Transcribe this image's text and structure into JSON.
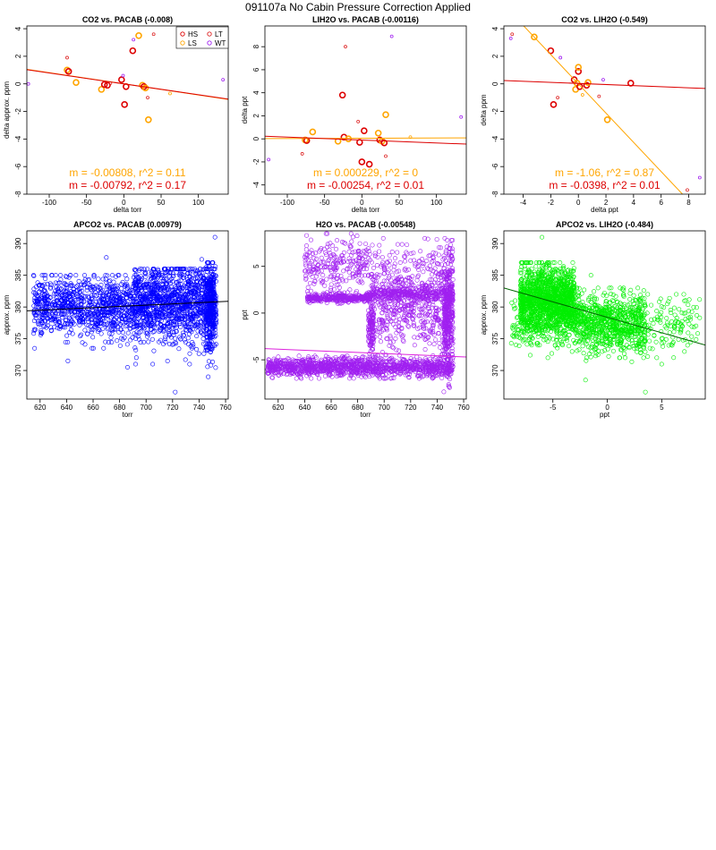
{
  "figure_title": "091107a   No Cabin Pressure Correction Applied",
  "colors": {
    "HS": "#dd0000",
    "LS": "#ffa500",
    "LT": "#dd2222",
    "WT": "#a020f0",
    "fit_red": "#dd0000",
    "fit_orange": "#ffa500"
  },
  "chart_data": [
    {
      "type": "scatter",
      "title": "CO2 vs. PACAB (-0.008)",
      "xlabel": "delta torr",
      "ylabel": "delta approx. ppm",
      "xlim": [
        -130,
        140
      ],
      "ylim": [
        -8,
        4.2
      ],
      "xticks": [
        -100,
        -50,
        0,
        50,
        100
      ],
      "yticks": [
        -8,
        -6,
        -4,
        -2,
        0,
        2,
        4
      ],
      "legend": {
        "position": "top-right",
        "entries": [
          {
            "label": "HS",
            "color": "#dd0000"
          },
          {
            "label": "LT",
            "color": "#dd2222"
          },
          {
            "label": "LS",
            "color": "#ffa500"
          },
          {
            "label": "WT",
            "color": "#a020f0"
          }
        ]
      },
      "points": [
        {
          "x": -128,
          "y": 0.0,
          "c": "#a020f0",
          "r": 1.5
        },
        {
          "x": -76,
          "y": 1.9,
          "c": "#dd2222",
          "r": 1.5
        },
        {
          "x": -76,
          "y": 1.0,
          "c": "#ffa500",
          "r": 3
        },
        {
          "x": -74,
          "y": 0.9,
          "c": "#dd0000",
          "r": 3
        },
        {
          "x": -64,
          "y": 0.1,
          "c": "#ffa500",
          "r": 3
        },
        {
          "x": -30,
          "y": -0.4,
          "c": "#ffa500",
          "r": 3
        },
        {
          "x": -26,
          "y": -0.05,
          "c": "#dd0000",
          "r": 3
        },
        {
          "x": -22,
          "y": -0.1,
          "c": "#dd0000",
          "r": 3
        },
        {
          "x": -18,
          "y": 0.05,
          "c": "#dd2222",
          "r": 1.5
        },
        {
          "x": -3,
          "y": 0.3,
          "c": "#dd0000",
          "r": 3
        },
        {
          "x": -1,
          "y": 0.6,
          "c": "#a020f0",
          "r": 1.5
        },
        {
          "x": 1,
          "y": -1.5,
          "c": "#dd0000",
          "r": 3
        },
        {
          "x": 3,
          "y": -0.2,
          "c": "#dd0000",
          "r": 3
        },
        {
          "x": 12,
          "y": 2.4,
          "c": "#dd0000",
          "r": 3
        },
        {
          "x": 13,
          "y": 3.2,
          "c": "#a020f0",
          "r": 1.5
        },
        {
          "x": 20,
          "y": 3.5,
          "c": "#ffa500",
          "r": 3
        },
        {
          "x": 25,
          "y": -0.1,
          "c": "#ffa500",
          "r": 3
        },
        {
          "x": 27,
          "y": -0.2,
          "c": "#dd0000",
          "r": 3
        },
        {
          "x": 29,
          "y": -0.3,
          "c": "#ffa500",
          "r": 3
        },
        {
          "x": 32,
          "y": -1.0,
          "c": "#dd2222",
          "r": 1.5
        },
        {
          "x": 33,
          "y": -2.6,
          "c": "#ffa500",
          "r": 3
        },
        {
          "x": 40,
          "y": 3.6,
          "c": "#dd2222",
          "r": 1.5
        },
        {
          "x": 62,
          "y": -0.7,
          "c": "#ffa500",
          "r": 1.5
        },
        {
          "x": 133,
          "y": 0.3,
          "c": "#a020f0",
          "r": 1.5
        }
      ],
      "fits": [
        {
          "color": "#ffa500",
          "slope": -0.00808,
          "intercept": 0.0
        },
        {
          "color": "#dd0000",
          "slope": -0.00792,
          "intercept": 0.0
        }
      ],
      "stats": [
        {
          "text": "m = -0.00808, r^2 = 0.11",
          "color": "#ffa500"
        },
        {
          "text": "m = -0.00792, r^2 = 0.17",
          "color": "#dd0000"
        }
      ]
    },
    {
      "type": "scatter",
      "title": "LIH2O vs. PACAB (-0.00116)",
      "xlabel": "delta torr",
      "ylabel": "delta ppt",
      "xlim": [
        -130,
        140
      ],
      "ylim": [
        -4.8,
        9.8
      ],
      "xticks": [
        -100,
        -50,
        0,
        50,
        100
      ],
      "yticks": [
        -4,
        -2,
        0,
        2,
        4,
        6,
        8
      ],
      "points": [
        {
          "x": -125,
          "y": -1.8,
          "c": "#a020f0",
          "r": 1.5
        },
        {
          "x": -80,
          "y": -1.3,
          "c": "#dd2222",
          "r": 1.5
        },
        {
          "x": -76,
          "y": -0.1,
          "c": "#ffa500",
          "r": 3
        },
        {
          "x": -74,
          "y": -0.15,
          "c": "#dd0000",
          "r": 3
        },
        {
          "x": -66,
          "y": 0.6,
          "c": "#ffa500",
          "r": 3
        },
        {
          "x": -32,
          "y": -0.2,
          "c": "#ffa500",
          "r": 3
        },
        {
          "x": -26,
          "y": 3.8,
          "c": "#dd0000",
          "r": 3
        },
        {
          "x": -24,
          "y": 0.15,
          "c": "#dd0000",
          "r": 3
        },
        {
          "x": -22,
          "y": 8.0,
          "c": "#dd2222",
          "r": 1.5
        },
        {
          "x": -18,
          "y": 0.0,
          "c": "#ffa500",
          "r": 3
        },
        {
          "x": -5,
          "y": 1.5,
          "c": "#dd2222",
          "r": 1.5
        },
        {
          "x": -3,
          "y": -0.3,
          "c": "#dd0000",
          "r": 3
        },
        {
          "x": 0,
          "y": -2.0,
          "c": "#dd0000",
          "r": 3
        },
        {
          "x": 3,
          "y": 0.7,
          "c": "#dd0000",
          "r": 3
        },
        {
          "x": 10,
          "y": -2.2,
          "c": "#dd0000",
          "r": 3
        },
        {
          "x": 22,
          "y": 0.5,
          "c": "#ffa500",
          "r": 3
        },
        {
          "x": 24,
          "y": -0.1,
          "c": "#dd0000",
          "r": 3
        },
        {
          "x": 27,
          "y": -0.2,
          "c": "#ffa500",
          "r": 3
        },
        {
          "x": 30,
          "y": -0.35,
          "c": "#dd0000",
          "r": 3
        },
        {
          "x": 32,
          "y": -1.5,
          "c": "#dd2222",
          "r": 1.5
        },
        {
          "x": 32,
          "y": 2.1,
          "c": "#ffa500",
          "r": 3
        },
        {
          "x": 40,
          "y": 8.9,
          "c": "#a020f0",
          "r": 1.5
        },
        {
          "x": 65,
          "y": 0.15,
          "c": "#ffa500",
          "r": 1.5
        },
        {
          "x": 133,
          "y": 1.9,
          "c": "#a020f0",
          "r": 1.5
        }
      ],
      "fits": [
        {
          "color": "#ffa500",
          "slope": 0.000229,
          "intercept": 0.05
        },
        {
          "color": "#dd0000",
          "slope": -0.00254,
          "intercept": -0.1
        }
      ],
      "stats": [
        {
          "text": "m = 0.000229, r^2 = 0",
          "color": "#ffa500"
        },
        {
          "text": "m = -0.00254, r^2 = 0.01",
          "color": "#dd0000"
        }
      ]
    },
    {
      "type": "scatter",
      "title": "CO2 vs. LIH2O (-0.549)",
      "xlabel": "delta ppt",
      "ylabel": "delta ppm",
      "xlim": [
        -5.4,
        9.2
      ],
      "ylim": [
        -8,
        4.2
      ],
      "xticks": [
        -4,
        -2,
        0,
        2,
        4,
        6,
        8
      ],
      "yticks": [
        -8,
        -6,
        -4,
        -2,
        0,
        2,
        4
      ],
      "points": [
        {
          "x": -4.8,
          "y": 3.6,
          "c": "#dd2222",
          "r": 1.5
        },
        {
          "x": -4.9,
          "y": 3.3,
          "c": "#a020f0",
          "r": 1.5
        },
        {
          "x": -3.2,
          "y": 3.4,
          "c": "#ffa500",
          "r": 3
        },
        {
          "x": -2.0,
          "y": 2.4,
          "c": "#dd0000",
          "r": 3
        },
        {
          "x": -1.8,
          "y": -1.5,
          "c": "#dd0000",
          "r": 3
        },
        {
          "x": -1.5,
          "y": -1.0,
          "c": "#dd2222",
          "r": 1.5
        },
        {
          "x": -1.3,
          "y": 1.9,
          "c": "#a020f0",
          "r": 1.5
        },
        {
          "x": -0.3,
          "y": 0.3,
          "c": "#dd0000",
          "r": 3
        },
        {
          "x": -0.2,
          "y": -0.4,
          "c": "#ffa500",
          "r": 3
        },
        {
          "x": -0.1,
          "y": 0.05,
          "c": "#ffa500",
          "r": 3
        },
        {
          "x": 0.0,
          "y": 0.9,
          "c": "#dd0000",
          "r": 3
        },
        {
          "x": 0.0,
          "y": 1.2,
          "c": "#ffa500",
          "r": 3
        },
        {
          "x": 0.1,
          "y": -0.2,
          "c": "#dd0000",
          "r": 3
        },
        {
          "x": 0.3,
          "y": -0.8,
          "c": "#ffa500",
          "r": 1.5
        },
        {
          "x": 0.6,
          "y": -0.1,
          "c": "#dd0000",
          "r": 3
        },
        {
          "x": 0.7,
          "y": 0.1,
          "c": "#ffa500",
          "r": 3
        },
        {
          "x": 1.5,
          "y": -0.9,
          "c": "#dd2222",
          "r": 1.5
        },
        {
          "x": 1.8,
          "y": 0.3,
          "c": "#a020f0",
          "r": 1.5
        },
        {
          "x": 2.1,
          "y": -2.6,
          "c": "#ffa500",
          "r": 3
        },
        {
          "x": 3.8,
          "y": 0.05,
          "c": "#dd0000",
          "r": 3
        },
        {
          "x": 7.9,
          "y": -7.7,
          "c": "#dd2222",
          "r": 1.5
        },
        {
          "x": 8.8,
          "y": -6.8,
          "c": "#a020f0",
          "r": 1.5
        }
      ],
      "fits": [
        {
          "color": "#ffa500",
          "slope": -1.06,
          "intercept": 0.0
        },
        {
          "color": "#dd0000",
          "slope": -0.0398,
          "intercept": 0.03
        }
      ],
      "stats": [
        {
          "text": "m = -1.06, r^2 = 0.87",
          "color": "#ffa500"
        },
        {
          "text": "m = -0.0398, r^2 = 0.01",
          "color": "#dd0000"
        }
      ]
    },
    {
      "type": "scatter",
      "title": "APCO2 vs. PACAB (0.00979)",
      "xlabel": "torr",
      "ylabel": "approx. ppm",
      "xlim": [
        610,
        762
      ],
      "ylim": [
        365.5,
        392
      ],
      "xticks": [
        620,
        640,
        660,
        680,
        700,
        720,
        740,
        760
      ],
      "yticks": [
        370,
        375,
        380,
        385,
        390
      ],
      "point_color": "#0000ff",
      "clusters": [
        {
          "x": [
            615,
            690
          ],
          "y": [
            373.5,
            385
          ],
          "center": 380,
          "count": 900
        },
        {
          "x": [
            690,
            752
          ],
          "y": [
            371,
            386
          ],
          "center": 380.5,
          "count": 1300
        },
        {
          "x": [
            745,
            753
          ],
          "y": [
            369,
            387
          ],
          "center": 380,
          "count": 300
        }
      ],
      "outliers": [
        {
          "x": 752,
          "y": 391
        },
        {
          "x": 722,
          "y": 366.6
        },
        {
          "x": 670,
          "y": 387.8
        },
        {
          "x": 641,
          "y": 371.5
        },
        {
          "x": 705,
          "y": 371
        },
        {
          "x": 742,
          "y": 387.5
        },
        {
          "x": 686,
          "y": 370.5
        }
      ],
      "fits": [
        {
          "color": "#000000",
          "x": [
            610,
            762
          ],
          "y": [
            379.4,
            380.9
          ]
        }
      ]
    },
    {
      "type": "scatter",
      "title": "H2O vs. PACAB (-0.00548)",
      "xlabel": "torr",
      "ylabel": "ppt",
      "xlim": [
        610,
        762
      ],
      "ylim": [
        -9.2,
        8.8
      ],
      "xticks": [
        620,
        640,
        660,
        680,
        700,
        720,
        740,
        760
      ],
      "yticks": [
        -5,
        0,
        5
      ],
      "point_color": "#a020f0",
      "clusters": [
        {
          "x": [
            612,
            752
          ],
          "y": [
            -7,
            -4.5
          ],
          "center": -5.8,
          "count": 1300
        },
        {
          "x": [
            642,
            690
          ],
          "y": [
            1,
            2.2
          ],
          "center": 1.6,
          "count": 350
        },
        {
          "x": [
            640,
            690
          ],
          "y": [
            1.5,
            8.5
          ],
          "center": 5,
          "count": 250
        },
        {
          "x": [
            688,
            692
          ],
          "y": [
            -5,
            2
          ],
          "center": -1.5,
          "count": 120
        },
        {
          "x": [
            690,
            752
          ],
          "y": [
            -5,
            8
          ],
          "center": 1.5,
          "count": 700
        },
        {
          "x": [
            690,
            752
          ],
          "y": [
            1.5,
            3
          ],
          "center": 2,
          "count": 250
        },
        {
          "x": [
            745,
            752
          ],
          "y": [
            -8.5,
            7.8
          ],
          "center": 0,
          "count": 350
        }
      ],
      "outliers": [],
      "fits": [
        {
          "color": "#dd22dd",
          "x": [
            610,
            762
          ],
          "y": [
            -3.8,
            -4.7
          ]
        }
      ]
    },
    {
      "type": "scatter",
      "title": "APCO2 vs. LIH2O (-0.484)",
      "xlabel": "ppt",
      "ylabel": "approx. ppm",
      "xlim": [
        -9.5,
        9
      ],
      "ylim": [
        365.5,
        392
      ],
      "xticks": [
        -5,
        0,
        5
      ],
      "yticks": [
        370,
        375,
        380,
        385,
        390
      ],
      "point_color": "#00ee00",
      "clusters": [
        {
          "x": [
            -8,
            -3
          ],
          "y": [
            374,
            387
          ],
          "center": 381,
          "count": 1500
        },
        {
          "x": [
            -3,
            3.5
          ],
          "y": [
            372,
            383
          ],
          "center": 377.5,
          "count": 700
        },
        {
          "x": [
            -9,
            8.5
          ],
          "y": [
            371,
            382
          ],
          "center": 377,
          "count": 400
        }
      ],
      "outliers": [
        {
          "x": -6,
          "y": 391
        },
        {
          "x": -1.5,
          "y": 385
        },
        {
          "x": 3.5,
          "y": 366.6
        },
        {
          "x": -2,
          "y": 368.5
        },
        {
          "x": 5,
          "y": 371
        },
        {
          "x": 1.5,
          "y": 383
        }
      ],
      "fits": [
        {
          "color": "#006400",
          "x": [
            -9.5,
            9
          ],
          "y": [
            383,
            374
          ]
        }
      ]
    }
  ]
}
